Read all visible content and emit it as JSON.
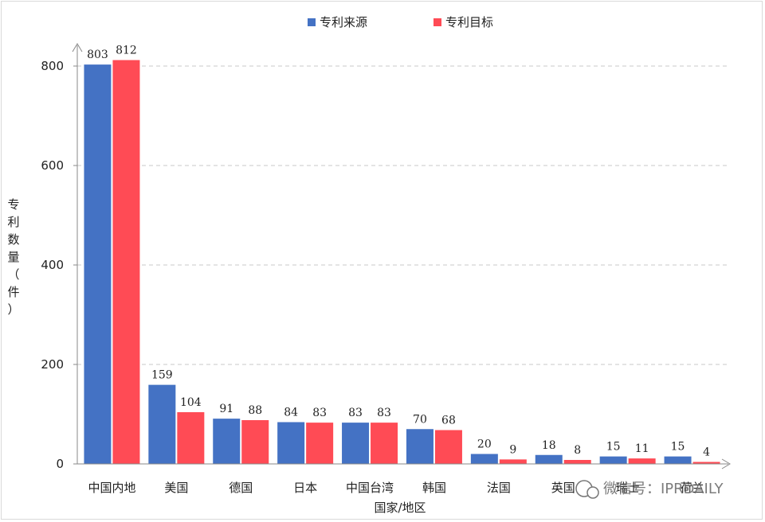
{
  "chart_data": {
    "type": "bar",
    "title": "",
    "xlabel": "国家/地区",
    "ylabel_chars": [
      "专",
      "利",
      "数",
      "量",
      "（",
      "件",
      "）"
    ],
    "ylim": [
      0,
      800
    ],
    "yticks": [
      0,
      200,
      400,
      600,
      800
    ],
    "grid": true,
    "legend_position": "top-center",
    "categories": [
      "中国内地",
      "美国",
      "德国",
      "日本",
      "中国台湾",
      "韩国",
      "法国",
      "英国",
      "瑞士",
      "荷兰"
    ],
    "series": [
      {
        "name": "专利来源",
        "color": "#4472c4",
        "values": [
          803,
          159,
          91,
          84,
          83,
          70,
          20,
          18,
          15,
          15
        ]
      },
      {
        "name": "专利目标",
        "color": "#ff4b55",
        "values": [
          812,
          104,
          88,
          83,
          83,
          68,
          9,
          8,
          11,
          4
        ]
      }
    ]
  },
  "watermark": {
    "text": "微信号：IPRDAILY"
  }
}
